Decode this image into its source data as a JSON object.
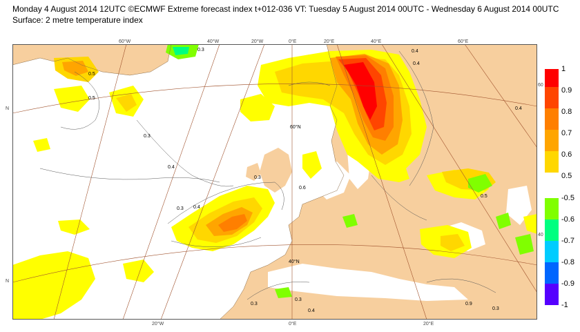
{
  "header": {
    "title": "Monday 4 August 2014 12UTC ©ECMWF Extreme forecast index t+012-036 VT: Tuesday 5 August 2014 00UTC - Wednesday 6 August 2014 00UTC",
    "subtitle": "Surface: 2 metre temperature index"
  },
  "map": {
    "top_labels": [
      "60°W",
      "40°W",
      "20°W",
      "0°E",
      "20°E",
      "40°E",
      "60°E"
    ],
    "bottom_labels": [
      "20°W",
      "0°E",
      "20°E"
    ],
    "lat_labels": [
      "60°N",
      "40°N"
    ],
    "side_labels": [
      "60",
      "40"
    ],
    "contour_labels": [
      "0.3",
      "0.4",
      "0.5",
      "0.6",
      "0.3",
      "0.4",
      "0.3",
      "0.4",
      "0.3",
      "0.4",
      "0.5",
      "0.3",
      "0.4",
      "0.3",
      "0.3",
      "0.5",
      "0.4",
      "0.9"
    ],
    "colors": {
      "land": "#f7cf9e",
      "sea": "#ffffff",
      "graticule": "#a0522d"
    }
  },
  "legend": {
    "warm": [
      {
        "label": "1",
        "color": "#ff0000"
      },
      {
        "label": "0.9",
        "color": "#ff4500"
      },
      {
        "label": "0.8",
        "color": "#ff7f00"
      },
      {
        "label": "0.7",
        "color": "#ffa500"
      },
      {
        "label": "0.6",
        "color": "#ffd700"
      },
      {
        "label": "0.5",
        "color": "#ffff00"
      }
    ],
    "cold": [
      {
        "label": "-0.5",
        "color": "#80ff00"
      },
      {
        "label": "-0.6",
        "color": "#00ff80"
      },
      {
        "label": "-0.7",
        "color": "#00ccff"
      },
      {
        "label": "-0.8",
        "color": "#0066ff"
      },
      {
        "label": "-0.9",
        "color": "#5500ff"
      },
      {
        "label": "-1",
        "color": "#ff00ff"
      }
    ]
  }
}
